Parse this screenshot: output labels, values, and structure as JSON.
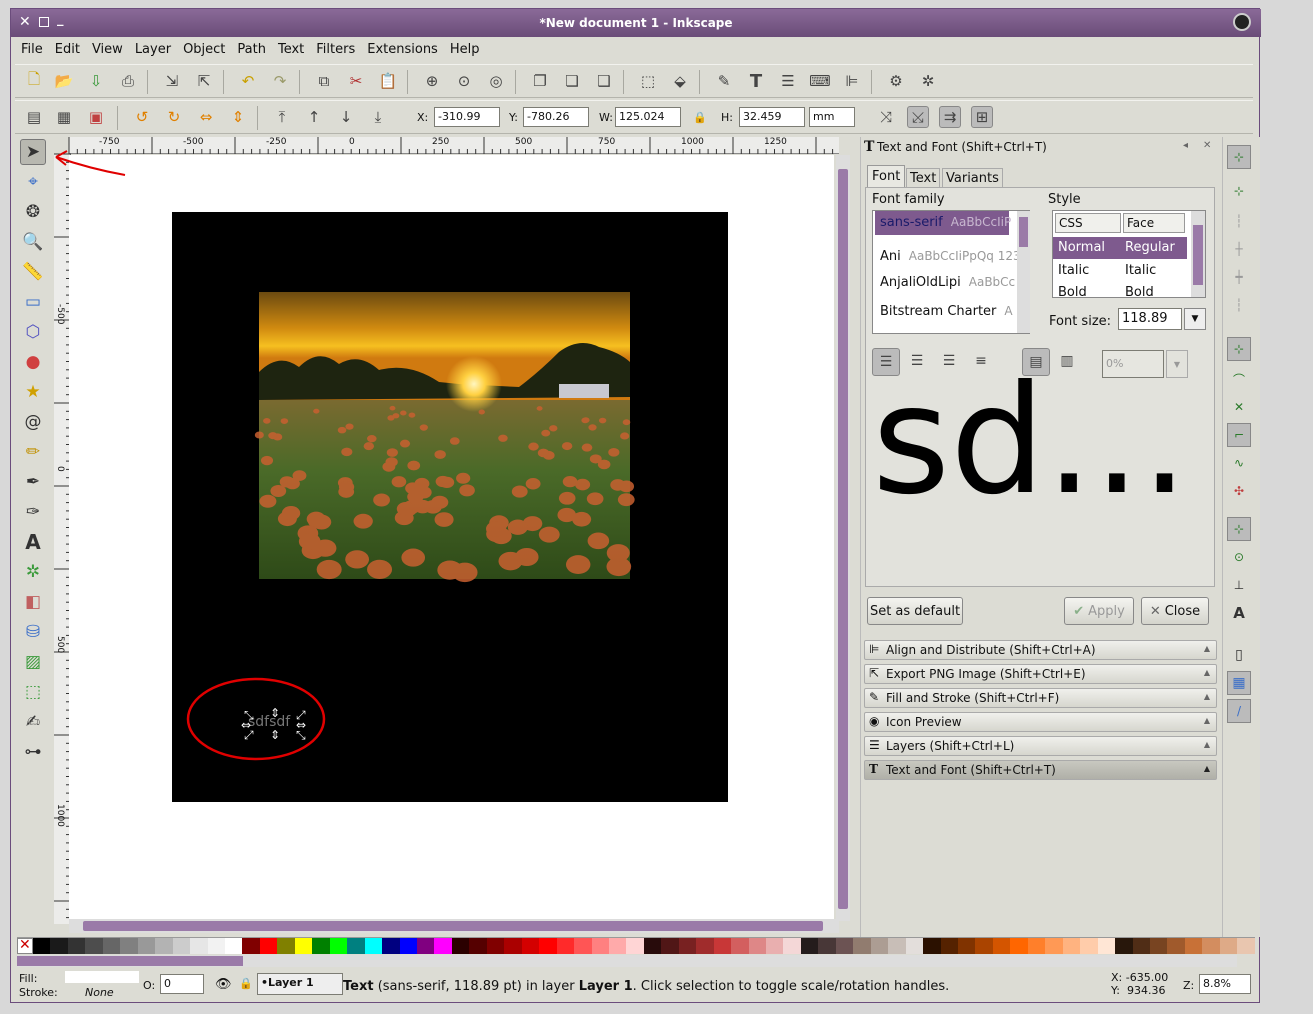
{
  "window": {
    "title": "*New document 1 - Inkscape"
  },
  "menu": [
    "File",
    "Edit",
    "View",
    "Layer",
    "Object",
    "Path",
    "Text",
    "Filters",
    "Extensions",
    "Help"
  ],
  "tool_controls": {
    "x_label": "X:",
    "x_value": "-310.99",
    "y_label": "Y:",
    "y_value": "-780.26",
    "w_label": "W:",
    "w_value": "125.024",
    "h_label": "H:",
    "h_value": "32.459",
    "unit": "mm"
  },
  "rulers": {
    "h_ticks": [
      "-750",
      "-500",
      "-250",
      "0",
      "250",
      "500",
      "750",
      "1000",
      "1250"
    ],
    "v_ticks": [
      "-500",
      "0",
      "500",
      "1000"
    ]
  },
  "canvas": {
    "text_object": "sdfsdf"
  },
  "text_font_panel": {
    "title": "Text and Font (Shift+Ctrl+T)",
    "tabs": [
      "Font",
      "Text",
      "Variants"
    ],
    "font_family_label": "Font family",
    "fonts": [
      {
        "name": "sans-serif",
        "preview": "AaBbCcIiP"
      },
      {
        "name": "Ani",
        "preview": "AaBbCcIiPpQq 123"
      },
      {
        "name": "AnjaliOldLipi",
        "preview": "AaBbCc"
      },
      {
        "name": "Bitstream Charter",
        "preview": "A"
      }
    ],
    "style_label": "Style",
    "style_headers": [
      "CSS",
      "Face"
    ],
    "styles": [
      {
        "css": "Normal",
        "face": "Regular"
      },
      {
        "css": "Italic",
        "face": "Italic"
      },
      {
        "css": "Bold",
        "face": "Bold"
      }
    ],
    "font_size_label": "Font size:",
    "font_size": "118.89",
    "spacing": "0%",
    "preview_text": "sd...",
    "set_default_label": "Set as default",
    "apply_label": "Apply",
    "close_label": "Close"
  },
  "docked_panels": [
    {
      "label": "Align and Distribute (Shift+Ctrl+A)",
      "icon": "align-icon"
    },
    {
      "label": "Export PNG Image (Shift+Ctrl+E)",
      "icon": "export-icon"
    },
    {
      "label": "Fill and Stroke (Shift+Ctrl+F)",
      "icon": "fill-stroke-icon"
    },
    {
      "label": "Icon Preview",
      "icon": "icon-preview-icon"
    },
    {
      "label": "Layers (Shift+Ctrl+L)",
      "icon": "layers-icon"
    },
    {
      "label": "Text and Font (Shift+Ctrl+T)",
      "icon": "text-icon"
    }
  ],
  "status": {
    "fill_label": "Fill:",
    "stroke_label": "Stroke:",
    "stroke_value": "None",
    "opacity_label": "O:",
    "opacity_value": "0",
    "layer": "•Layer 1",
    "message_bold": "Text",
    "message": " (sans-serif, 118.89 pt) in layer ",
    "message_layer": "Layer 1",
    "message_tail": ". Click selection to toggle scale/rotation handles.",
    "x_coord": "X: -635.00",
    "y_coord": "Y:  934.36",
    "zoom_label": "Z:",
    "zoom": "8.8%"
  },
  "colors": {
    "title_bar": "#6a4c78",
    "accent": "#7e5a8e",
    "annotation": "#e00000"
  },
  "palette": [
    "#000000",
    "#1a1a1a",
    "#333333",
    "#4d4d4d",
    "#666666",
    "#808080",
    "#999999",
    "#b3b3b3",
    "#cccccc",
    "#e6e6e6",
    "#f2f2f2",
    "#ffffff",
    "#800000",
    "#ff0000",
    "#808000",
    "#ffff00",
    "#008000",
    "#00ff00",
    "#008080",
    "#00ffff",
    "#000080",
    "#0000ff",
    "#800080",
    "#ff00ff",
    "#2b0000",
    "#550000",
    "#800000",
    "#aa0000",
    "#d40000",
    "#ff0000",
    "#ff2a2a",
    "#ff5555",
    "#ff8080",
    "#ffaaaa",
    "#ffd5d5",
    "#280b0b",
    "#501616",
    "#782121",
    "#a02c2c",
    "#c83737",
    "#d35f5f",
    "#de8787",
    "#e9afaf",
    "#f4d7d7",
    "#241c1c",
    "#483737",
    "#6c5353",
    "#917c6f",
    "#ac9d93",
    "#c8beb7",
    "#e3dedb",
    "#2b1100",
    "#552200",
    "#803300",
    "#aa4400",
    "#d45500",
    "#ff6600",
    "#ff7f2a",
    "#ff9955",
    "#ffb380",
    "#ffccaa",
    "#ffe6d5",
    "#28170b",
    "#502d16",
    "#784421",
    "#a05a2c",
    "#c87137",
    "#d38d5f",
    "#deaa87",
    "#e9c6af"
  ]
}
